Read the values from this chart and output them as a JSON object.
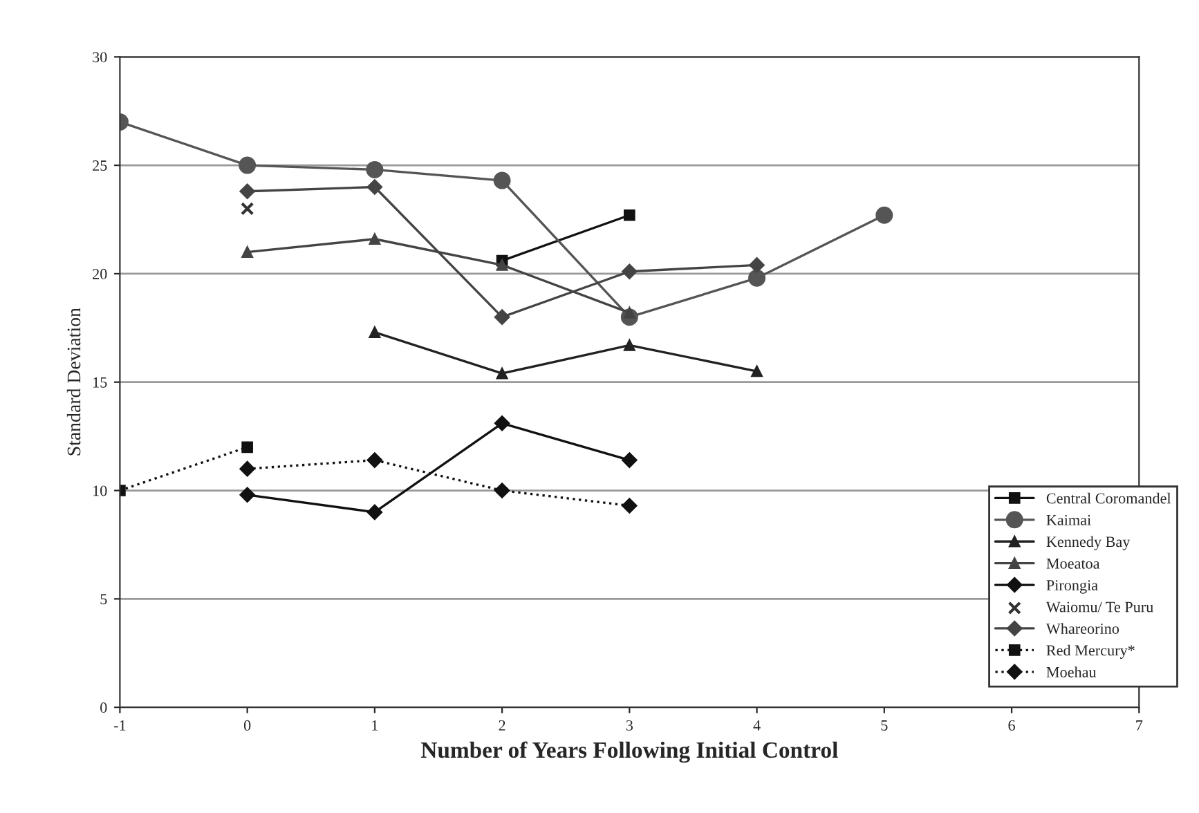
{
  "chart_data": {
    "type": "line",
    "xlabel": "Number of Years Following Initial Control",
    "ylabel": "Standard Deviation",
    "x": [
      -1,
      0,
      1,
      2,
      3,
      4,
      5
    ],
    "series": [
      {
        "name": "Central Coromandel",
        "color": "#111111",
        "marker": "square",
        "line_style": "solid",
        "values": [
          null,
          null,
          null,
          20.6,
          22.7,
          null,
          null
        ]
      },
      {
        "name": "Kaimai",
        "color": "#555555",
        "marker": "circle",
        "line_style": "solid",
        "values": [
          27,
          25,
          24.8,
          24.3,
          18,
          19.8,
          22.7
        ]
      },
      {
        "name": "Kennedy Bay",
        "color": "#222222",
        "marker": "triangle",
        "line_style": "solid",
        "values": [
          null,
          null,
          17.3,
          15.4,
          16.7,
          15.5,
          null
        ]
      },
      {
        "name": "Moeatoa",
        "color": "#444444",
        "marker": "triangle",
        "line_style": "solid",
        "values": [
          null,
          21,
          21.6,
          20.4,
          18.2,
          null,
          null
        ]
      },
      {
        "name": "Pirongia",
        "color": "#111111",
        "marker": "diamond",
        "line_style": "solid",
        "values": [
          null,
          9.8,
          9.0,
          13.1,
          11.4,
          null,
          null
        ]
      },
      {
        "name": "Waiomu/ Te Puru",
        "type": "scatter",
        "color": "#333333",
        "marker": "cross",
        "values": [
          null,
          23,
          null,
          null,
          null,
          null,
          null
        ]
      },
      {
        "name": "Whareorino",
        "color": "#444444",
        "marker": "diamond",
        "line_style": "solid",
        "values": [
          null,
          23.8,
          24.0,
          18.0,
          20.1,
          20.4,
          null
        ]
      },
      {
        "name": "Red Mercury*",
        "color": "#111111",
        "marker": "square",
        "line_style": "dotted",
        "values": [
          10,
          12.0,
          null,
          null,
          null,
          null,
          null
        ]
      },
      {
        "name": "Moehau",
        "color": "#111111",
        "marker": "diamond",
        "line_style": "dotted",
        "values": [
          null,
          11.0,
          11.4,
          10.0,
          9.3,
          null,
          null
        ]
      }
    ],
    "xlim": [
      -1,
      7
    ],
    "xticks": [
      -1,
      0,
      1,
      2,
      3,
      4,
      5,
      6,
      7
    ],
    "ylim": [
      0,
      30
    ],
    "yticks": [
      0,
      5,
      10,
      15,
      20,
      25,
      30
    ],
    "grid": "y",
    "legend": "right"
  }
}
